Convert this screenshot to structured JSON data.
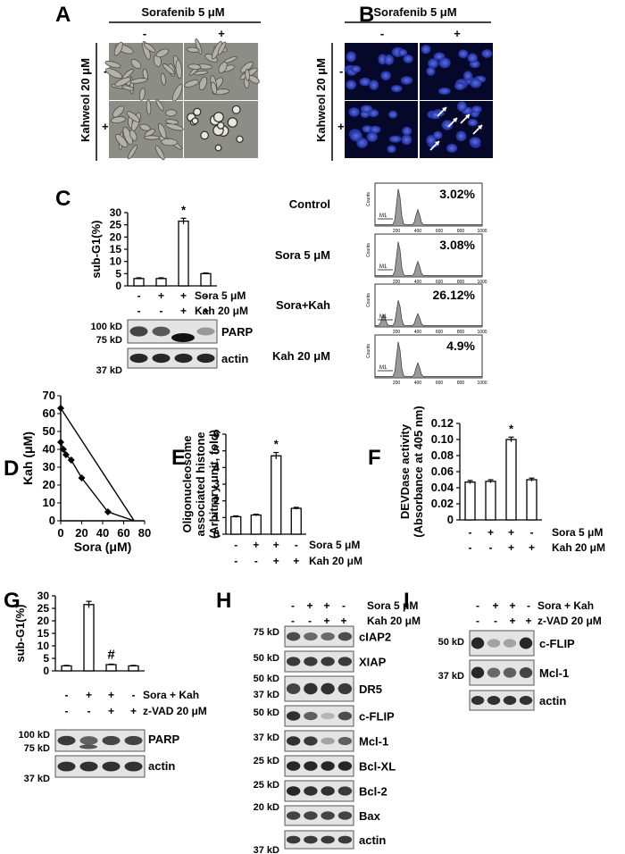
{
  "panel_letters": [
    "A",
    "B",
    "C",
    "D",
    "E",
    "F",
    "G",
    "H",
    "I"
  ],
  "common": {
    "sorafenib": "Sorafenib 5 μM",
    "kahweol": "Kahweol 20 μM",
    "minus": "-",
    "plus": "+",
    "sora": "Sora 5 μM",
    "kah": "Kah 20 μM",
    "sora_kah": "Sora + Kah",
    "zvad": "z-VAD 20 μM",
    "star": "*",
    "hash": "#"
  },
  "flow": {
    "rows": [
      {
        "label": "Control",
        "pct": "3.02%"
      },
      {
        "label": "Sora 5 μM",
        "pct": "3.08%"
      },
      {
        "label": "Sora+Kah",
        "pct": "26.12%"
      },
      {
        "label": "Kah 20 μM",
        "pct": "4.9%"
      }
    ],
    "ticks": [
      "200",
      "400",
      "600",
      "800",
      "1000"
    ],
    "gate": "M1",
    "ylabel": "Counts"
  },
  "blots": {
    "c": {
      "markers": [
        "100 kD",
        "75 kD",
        "37 kD"
      ],
      "proteins": [
        "PARP",
        "actin"
      ]
    },
    "g": {
      "markers": [
        "100 kD",
        "75 kD",
        "37 kD"
      ],
      "proteins": [
        "PARP",
        "actin"
      ]
    },
    "h": {
      "markers": [
        "75 kD",
        "50 kD",
        "50 kD",
        "37 kD",
        "50 kD",
        "37 kD",
        "25 kD",
        "25 kD",
        "20 kD",
        "37 kD"
      ],
      "proteins": [
        "cIAP2",
        "XIAP",
        "DR5",
        "c-FLIP",
        "Mcl-1",
        "Bcl-XL",
        "Bcl-2",
        "Bax",
        "actin"
      ]
    },
    "i": {
      "markers": [
        "50 kD",
        "37 kD"
      ],
      "proteins": [
        "c-FLIP",
        "Mcl-1",
        "actin"
      ]
    }
  },
  "chart_data": [
    {
      "panel": "C",
      "type": "bar",
      "ylabel": "sub-G1(%)",
      "ylim": [
        0,
        30
      ],
      "yticks": [
        0,
        5,
        10,
        15,
        20,
        25,
        30
      ],
      "values": [
        3,
        3,
        26.5,
        5
      ],
      "errors": [
        0.3,
        0.3,
        1.2,
        0.3
      ],
      "star_index": 2
    },
    {
      "panel": "D",
      "type": "line",
      "xlabel": "Sora (μM)",
      "ylabel": "Kah (μM)",
      "xlim": [
        0,
        80
      ],
      "ylim": [
        0,
        70
      ],
      "xticks": [
        0,
        20,
        40,
        60,
        80
      ],
      "yticks": [
        0,
        10,
        20,
        30,
        40,
        50,
        60,
        70
      ],
      "points": [
        [
          0,
          44
        ],
        [
          2.5,
          40
        ],
        [
          5,
          37
        ],
        [
          10,
          34
        ],
        [
          20,
          24
        ],
        [
          45,
          5
        ],
        [
          70,
          0
        ]
      ],
      "line": [
        [
          0,
          63
        ],
        [
          70,
          0
        ]
      ]
    },
    {
      "panel": "E",
      "type": "bar",
      "ylabel": "Oligonucleosome associated histone (Arbitrary unit, fold)",
      "ylim": [
        0,
        6
      ],
      "yticks": [
        0,
        1,
        2,
        3,
        4,
        5,
        6
      ],
      "values": [
        1.05,
        1.15,
        4.7,
        1.55
      ],
      "errors": [
        0.05,
        0.05,
        0.2,
        0.06
      ],
      "star_index": 2
    },
    {
      "panel": "F",
      "type": "bar",
      "ylabel": "DEVDase activity (Absorbance at 405 nm)",
      "ylim": [
        0,
        0.12
      ],
      "yticks": [
        "0",
        "0.02",
        "0.04",
        "0.06",
        "0.08",
        "0.10",
        "0.12"
      ],
      "values": [
        0.047,
        0.048,
        0.1,
        0.05
      ],
      "errors": [
        0.002,
        0.002,
        0.003,
        0.002
      ],
      "star_index": 2
    },
    {
      "panel": "G",
      "type": "bar",
      "ylabel": "sub-G1(%)",
      "ylim": [
        0,
        30
      ],
      "yticks": [
        0,
        5,
        10,
        15,
        20,
        25,
        30
      ],
      "values": [
        2,
        26.5,
        2.5,
        2
      ],
      "errors": [
        0.2,
        1.3,
        0.2,
        0.2
      ],
      "hash_index": 2
    }
  ]
}
